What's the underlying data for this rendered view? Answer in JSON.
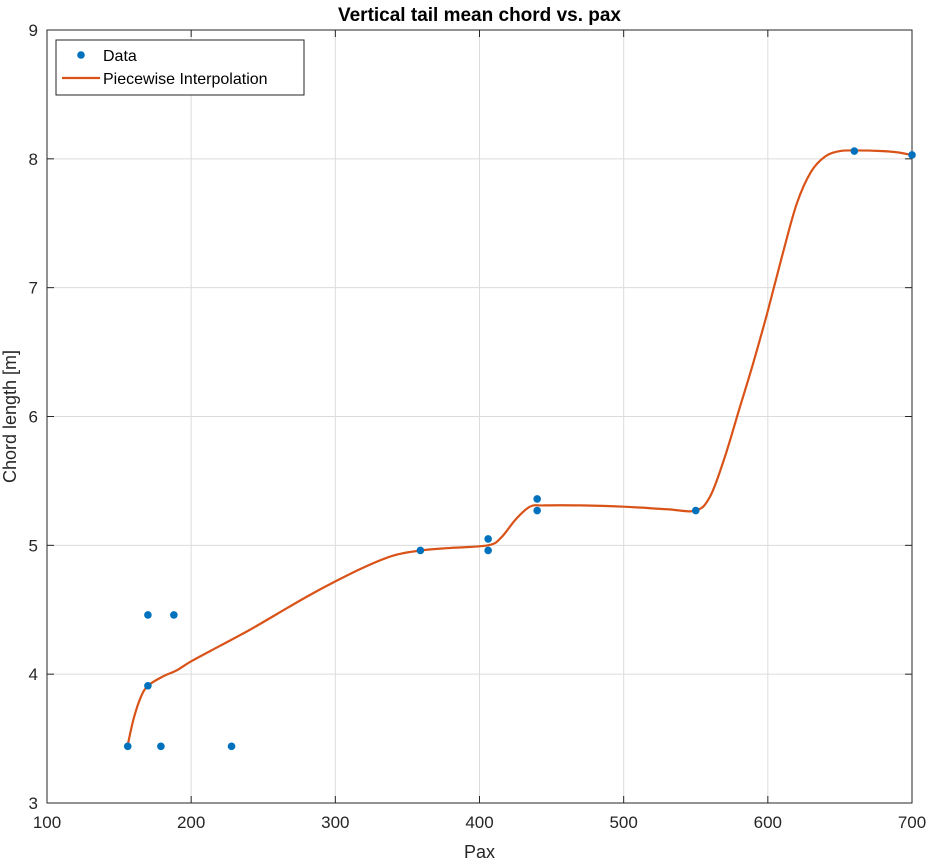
{
  "chart_data": {
    "type": "scatter",
    "title": "Vertical tail mean chord vs. pax",
    "xlabel": "Pax",
    "ylabel": "Chord length [m]",
    "xlim": [
      100,
      700
    ],
    "ylim": [
      3,
      9
    ],
    "xticks": [
      100,
      200,
      300,
      400,
      500,
      600,
      700
    ],
    "yticks": [
      3,
      4,
      5,
      6,
      7,
      8,
      9
    ],
    "grid": true,
    "legend_position": "top-left",
    "series": [
      {
        "name": "Data",
        "kind": "scatter",
        "color": "#0072BD",
        "points": [
          [
            156,
            3.44
          ],
          [
            170,
            4.46
          ],
          [
            170,
            3.91
          ],
          [
            179,
            3.44
          ],
          [
            188,
            4.46
          ],
          [
            228,
            3.44
          ],
          [
            359,
            4.96
          ],
          [
            406,
            5.05
          ],
          [
            406,
            4.96
          ],
          [
            440,
            5.36
          ],
          [
            440,
            5.27
          ],
          [
            550,
            5.27
          ],
          [
            660,
            8.06
          ],
          [
            700,
            8.03
          ]
        ]
      },
      {
        "name": "Piecewise Interpolation",
        "kind": "line",
        "color": "#D95319",
        "points": [
          [
            156,
            3.45
          ],
          [
            160,
            3.65
          ],
          [
            165,
            3.82
          ],
          [
            170,
            3.91
          ],
          [
            180,
            3.98
          ],
          [
            190,
            4.03
          ],
          [
            200,
            4.1
          ],
          [
            220,
            4.22
          ],
          [
            240,
            4.34
          ],
          [
            260,
            4.47
          ],
          [
            280,
            4.6
          ],
          [
            300,
            4.72
          ],
          [
            320,
            4.83
          ],
          [
            340,
            4.92
          ],
          [
            359,
            4.96
          ],
          [
            380,
            4.98
          ],
          [
            406,
            5.0
          ],
          [
            415,
            5.06
          ],
          [
            425,
            5.2
          ],
          [
            435,
            5.3
          ],
          [
            445,
            5.31
          ],
          [
            470,
            5.31
          ],
          [
            500,
            5.3
          ],
          [
            530,
            5.28
          ],
          [
            550,
            5.27
          ],
          [
            560,
            5.38
          ],
          [
            570,
            5.68
          ],
          [
            580,
            6.05
          ],
          [
            590,
            6.42
          ],
          [
            600,
            6.82
          ],
          [
            610,
            7.25
          ],
          [
            620,
            7.65
          ],
          [
            630,
            7.9
          ],
          [
            640,
            8.02
          ],
          [
            650,
            8.06
          ],
          [
            660,
            8.065
          ],
          [
            680,
            8.06
          ],
          [
            690,
            8.05
          ],
          [
            700,
            8.03
          ]
        ]
      }
    ]
  }
}
